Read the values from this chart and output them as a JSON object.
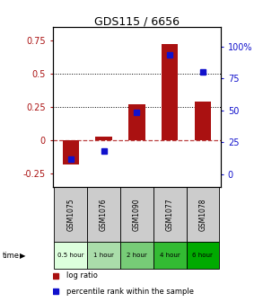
{
  "title": "GDS115 / 6656",
  "samples": [
    "GSM1075",
    "GSM1076",
    "GSM1090",
    "GSM1077",
    "GSM1078"
  ],
  "time_labels": [
    "0.5 hour",
    "1 hour",
    "2 hour",
    "4 hour",
    "6 hour"
  ],
  "log_ratios": [
    -0.18,
    0.03,
    0.27,
    0.72,
    0.29
  ],
  "percentile_ranks": [
    12,
    18,
    48,
    93,
    80
  ],
  "bar_color": "#aa1111",
  "dot_color": "#1111cc",
  "ylim_left": [
    -0.35,
    0.85
  ],
  "ylim_right": [
    -10,
    115
  ],
  "yticks_left": [
    -0.25,
    0,
    0.25,
    0.5,
    0.75
  ],
  "yticks_right": [
    0,
    25,
    50,
    75,
    100
  ],
  "ytick_labels_left": [
    "-0.25",
    "0",
    "0.25",
    "0.5",
    "0.75"
  ],
  "ytick_labels_right": [
    "0",
    "25",
    "50",
    "75",
    "100%"
  ],
  "hlines": [
    0.25,
    0.5
  ],
  "time_colors": [
    "#ddffdd",
    "#aaddaa",
    "#77cc77",
    "#33bb33",
    "#00aa00"
  ],
  "label_log_ratio": "log ratio",
  "label_percentile": "percentile rank within the sample",
  "bar_width": 0.5,
  "sample_bg": "#cccccc",
  "fig_bg": "#f0f0f0"
}
